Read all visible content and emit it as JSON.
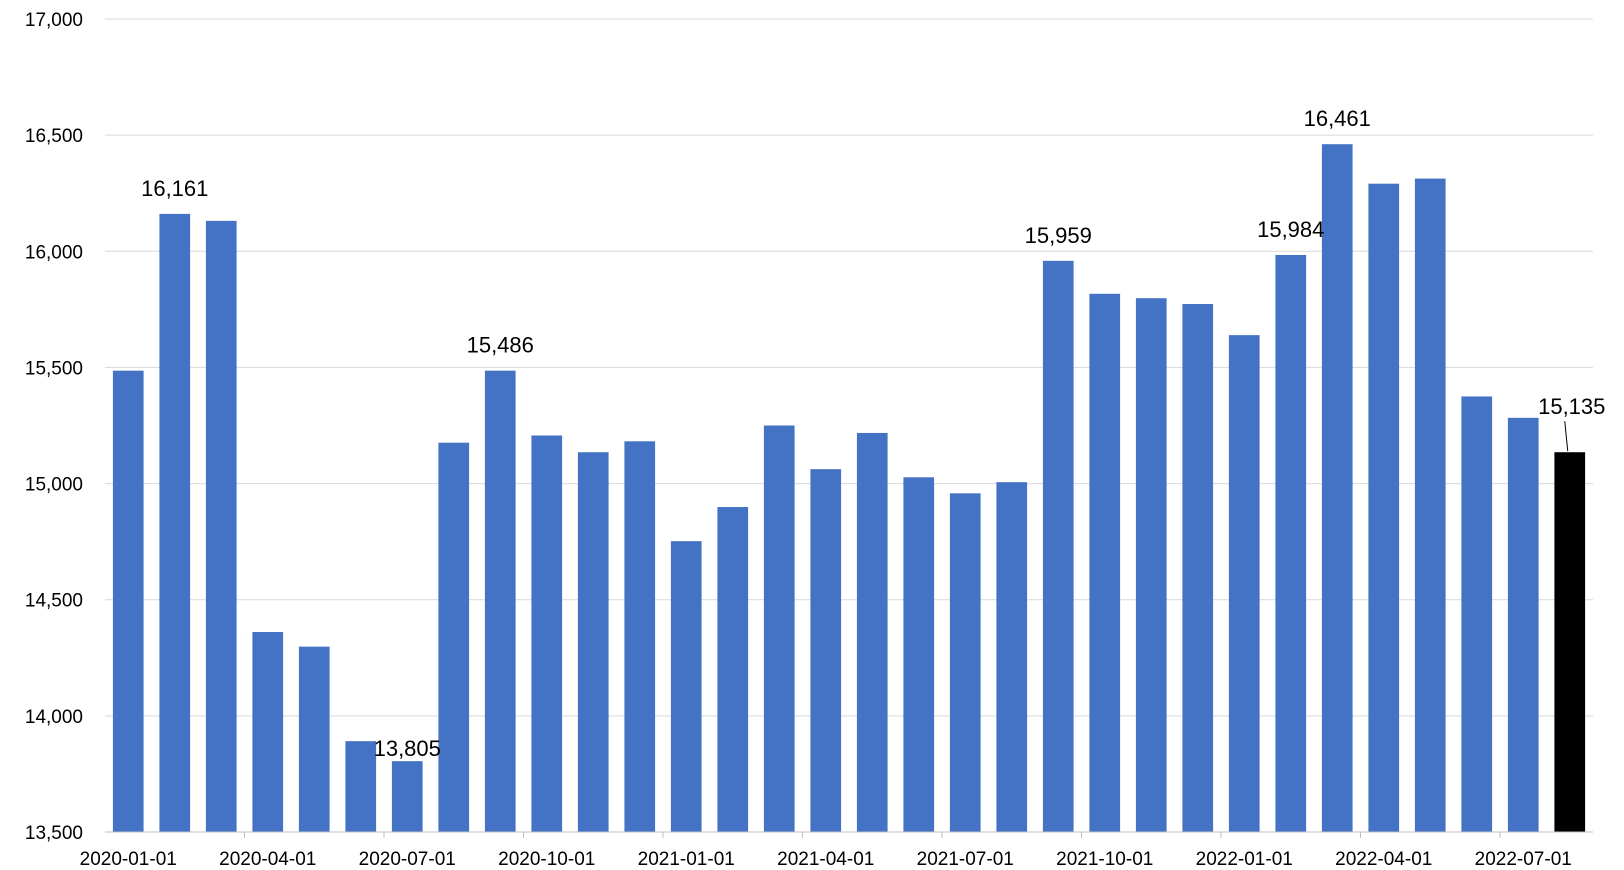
{
  "chart_data": {
    "type": "bar",
    "title": "",
    "xlabel": "",
    "ylabel": "",
    "ylim": [
      13500,
      17000
    ],
    "y_ticks": [
      13500,
      14000,
      14500,
      15000,
      15500,
      16000,
      16500,
      17000
    ],
    "y_tick_labels": [
      "13,500",
      "14,000",
      "14,500",
      "15,000",
      "15,500",
      "16,000",
      "16,500",
      "17,000"
    ],
    "x_tick_labels": [
      "2020-01-01",
      "2020-04-01",
      "2020-07-01",
      "2020-10-01",
      "2021-01-01",
      "2021-04-01",
      "2021-07-01",
      "2021-10-01",
      "2022-01-01",
      "2022-04-01",
      "2022-07-01"
    ],
    "grid": true,
    "legend": "none",
    "categories": [
      "2020-01-01",
      "2020-02-01",
      "2020-03-01",
      "2020-04-01",
      "2020-05-01",
      "2020-06-01",
      "2020-07-01",
      "2020-08-01",
      "2020-09-01",
      "2020-10-01",
      "2020-11-01",
      "2020-12-01",
      "2021-01-01",
      "2021-02-01",
      "2021-03-01",
      "2021-04-01",
      "2021-05-01",
      "2021-06-01",
      "2021-07-01",
      "2021-08-01",
      "2021-09-01",
      "2021-10-01",
      "2021-11-01",
      "2021-12-01",
      "2022-01-01",
      "2022-02-01",
      "2022-03-01",
      "2022-04-01",
      "2022-05-01",
      "2022-06-01",
      "2022-07-01",
      "2022-08-01"
    ],
    "values": [
      15486,
      16161,
      16131,
      14361,
      14298,
      13891,
      13805,
      15176,
      15486,
      15207,
      15135,
      15182,
      14752,
      14899,
      15250,
      15062,
      15218,
      15027,
      14958,
      15006,
      15959,
      15817,
      15798,
      15773,
      15639,
      15984,
      16461,
      16291,
      16313,
      15375,
      15283,
      15135
    ],
    "data_labels": [
      {
        "index": 1,
        "text": "16,161"
      },
      {
        "index": 6,
        "text": "13,805"
      },
      {
        "index": 8,
        "text": "15,486"
      },
      {
        "index": 20,
        "text": "15,959"
      },
      {
        "index": 25,
        "text": "15,984"
      },
      {
        "index": 26,
        "text": "16,461"
      },
      {
        "index": 31,
        "text": "15,135"
      }
    ],
    "colors": {
      "bar": "#4472c4",
      "highlight_bar": "#000000",
      "gridline": "#d9d9d9",
      "axis": "#bfbfbf"
    },
    "highlight_index": 31
  }
}
